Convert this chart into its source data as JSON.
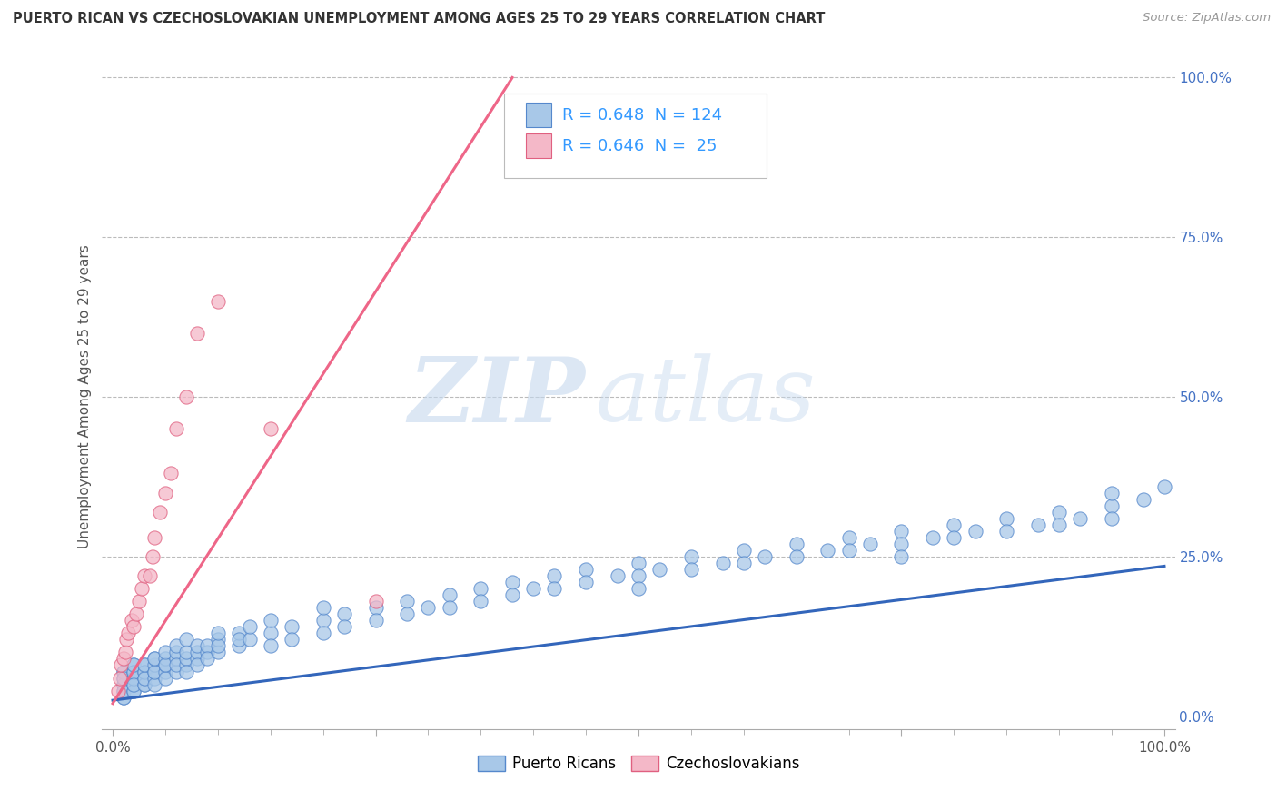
{
  "title": "PUERTO RICAN VS CZECHOSLOVAKIAN UNEMPLOYMENT AMONG AGES 25 TO 29 YEARS CORRELATION CHART",
  "source": "Source: ZipAtlas.com",
  "ylabel": "Unemployment Among Ages 25 to 29 years",
  "watermark_zip": "ZIP",
  "watermark_atlas": "atlas",
  "blue_R": 0.648,
  "blue_N": 124,
  "pink_R": 0.646,
  "pink_N": 25,
  "blue_color": "#A8C8E8",
  "pink_color": "#F4B8C8",
  "blue_edge_color": "#5588CC",
  "pink_edge_color": "#E06080",
  "blue_line_color": "#3366BB",
  "pink_line_color": "#EE6688",
  "legend_blue_label": "Puerto Ricans",
  "legend_pink_label": "Czechoslovakians",
  "blue_scatter_x": [
    0.01,
    0.01,
    0.01,
    0.01,
    0.01,
    0.01,
    0.01,
    0.01,
    0.01,
    0.01,
    0.02,
    0.02,
    0.02,
    0.02,
    0.02,
    0.02,
    0.02,
    0.02,
    0.02,
    0.02,
    0.03,
    0.03,
    0.03,
    0.03,
    0.03,
    0.03,
    0.03,
    0.03,
    0.04,
    0.04,
    0.04,
    0.04,
    0.04,
    0.04,
    0.04,
    0.05,
    0.05,
    0.05,
    0.05,
    0.05,
    0.05,
    0.06,
    0.06,
    0.06,
    0.06,
    0.06,
    0.07,
    0.07,
    0.07,
    0.07,
    0.07,
    0.08,
    0.08,
    0.08,
    0.08,
    0.09,
    0.09,
    0.09,
    0.1,
    0.1,
    0.1,
    0.1,
    0.12,
    0.12,
    0.12,
    0.13,
    0.13,
    0.15,
    0.15,
    0.15,
    0.17,
    0.17,
    0.2,
    0.2,
    0.2,
    0.22,
    0.22,
    0.25,
    0.25,
    0.28,
    0.28,
    0.3,
    0.32,
    0.32,
    0.35,
    0.35,
    0.38,
    0.38,
    0.4,
    0.42,
    0.42,
    0.45,
    0.45,
    0.48,
    0.5,
    0.5,
    0.5,
    0.52,
    0.55,
    0.55,
    0.58,
    0.6,
    0.6,
    0.62,
    0.65,
    0.65,
    0.68,
    0.7,
    0.7,
    0.72,
    0.75,
    0.75,
    0.75,
    0.78,
    0.8,
    0.8,
    0.82,
    0.85,
    0.85,
    0.88,
    0.9,
    0.9,
    0.92,
    0.95,
    0.95,
    0.95,
    0.98,
    1.0
  ],
  "blue_scatter_y": [
    0.03,
    0.04,
    0.05,
    0.06,
    0.07,
    0.03,
    0.05,
    0.07,
    0.04,
    0.06,
    0.04,
    0.05,
    0.06,
    0.07,
    0.08,
    0.04,
    0.06,
    0.07,
    0.05,
    0.08,
    0.05,
    0.06,
    0.07,
    0.08,
    0.05,
    0.07,
    0.06,
    0.08,
    0.06,
    0.07,
    0.08,
    0.09,
    0.05,
    0.07,
    0.09,
    0.07,
    0.08,
    0.09,
    0.06,
    0.08,
    0.1,
    0.07,
    0.09,
    0.1,
    0.08,
    0.11,
    0.08,
    0.09,
    0.1,
    0.07,
    0.12,
    0.09,
    0.1,
    0.11,
    0.08,
    0.1,
    0.11,
    0.09,
    0.1,
    0.12,
    0.11,
    0.13,
    0.11,
    0.13,
    0.12,
    0.12,
    0.14,
    0.13,
    0.15,
    0.11,
    0.14,
    0.12,
    0.15,
    0.17,
    0.13,
    0.16,
    0.14,
    0.17,
    0.15,
    0.18,
    0.16,
    0.17,
    0.19,
    0.17,
    0.2,
    0.18,
    0.21,
    0.19,
    0.2,
    0.22,
    0.2,
    0.23,
    0.21,
    0.22,
    0.24,
    0.22,
    0.2,
    0.23,
    0.25,
    0.23,
    0.24,
    0.26,
    0.24,
    0.25,
    0.27,
    0.25,
    0.26,
    0.28,
    0.26,
    0.27,
    0.29,
    0.27,
    0.25,
    0.28,
    0.3,
    0.28,
    0.29,
    0.31,
    0.29,
    0.3,
    0.32,
    0.3,
    0.31,
    0.33,
    0.31,
    0.35,
    0.34,
    0.36
  ],
  "pink_scatter_x": [
    0.005,
    0.007,
    0.008,
    0.01,
    0.012,
    0.013,
    0.015,
    0.018,
    0.02,
    0.022,
    0.025,
    0.028,
    0.03,
    0.035,
    0.038,
    0.04,
    0.045,
    0.05,
    0.055,
    0.06,
    0.07,
    0.08,
    0.1,
    0.15,
    0.25
  ],
  "pink_scatter_y": [
    0.04,
    0.06,
    0.08,
    0.09,
    0.1,
    0.12,
    0.13,
    0.15,
    0.14,
    0.16,
    0.18,
    0.2,
    0.22,
    0.22,
    0.25,
    0.28,
    0.32,
    0.35,
    0.38,
    0.45,
    0.5,
    0.6,
    0.65,
    0.45,
    0.18
  ],
  "blue_line_x0": 0.0,
  "blue_line_y0": 0.025,
  "blue_line_x1": 1.0,
  "blue_line_y1": 0.235,
  "pink_line_x0": 0.0,
  "pink_line_y0": 0.02,
  "pink_line_x1": 0.38,
  "pink_line_y1": 1.0,
  "xlim": [
    -0.01,
    1.01
  ],
  "ylim": [
    -0.02,
    1.02
  ],
  "xticks": [
    0.0,
    0.25,
    0.5,
    0.75,
    1.0
  ],
  "yticks": [
    0.0,
    0.25,
    0.5,
    0.75,
    1.0
  ],
  "xticklabels": [
    "0.0%",
    "",
    "",
    "",
    "100.0%"
  ],
  "yticklabels": [
    "0.0%",
    "25.0%",
    "50.0%",
    "75.0%",
    "100.0%"
  ],
  "background_color": "#FFFFFF",
  "grid_color": "#BBBBBB"
}
